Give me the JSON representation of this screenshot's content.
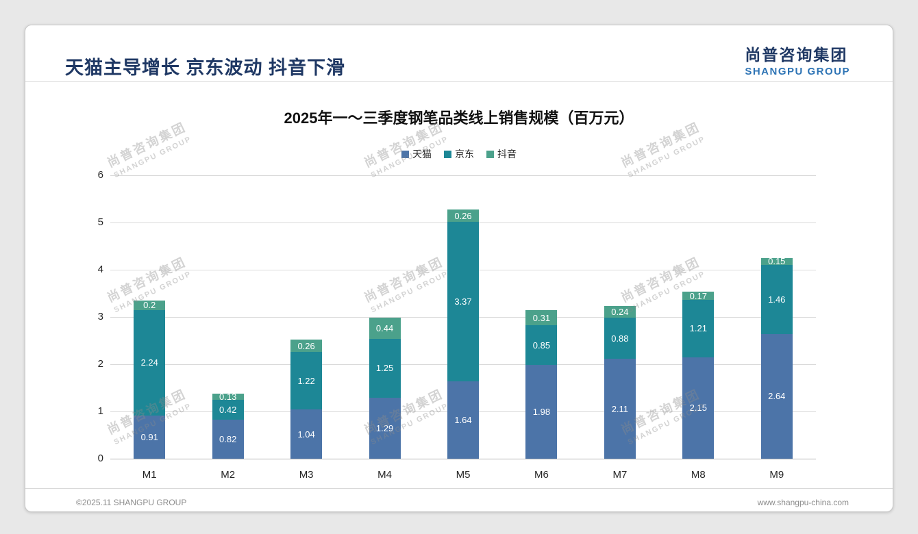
{
  "page": {
    "header_title": "天猫主导增长 京东波动 抖音下滑",
    "logo": {
      "cn": "尚普咨询集团",
      "en": "SHANGPU GROUP"
    },
    "watermark": {
      "cn": "尚普咨询集团",
      "en": "SHANGPU GROUP"
    },
    "footer": {
      "left": "©2025.11 SHANGPU GROUP",
      "right": "www.shangpu-china.com"
    }
  },
  "chart_data": {
    "type": "bar",
    "stacked": true,
    "title": "2025年一～三季度钢笔品类线上销售规模（百万元）",
    "categories": [
      "M1",
      "M2",
      "M3",
      "M4",
      "M5",
      "M6",
      "M7",
      "M8",
      "M9"
    ],
    "series": [
      {
        "name": "天猫",
        "key": "tmall",
        "color": "#4c74a8",
        "values": [
          0.91,
          0.82,
          1.04,
          1.29,
          1.64,
          1.98,
          2.11,
          2.15,
          2.64
        ]
      },
      {
        "name": "京东",
        "key": "jd",
        "color": "#1d8796",
        "values": [
          2.24,
          0.42,
          1.22,
          1.25,
          3.37,
          0.85,
          0.88,
          1.21,
          1.46
        ]
      },
      {
        "name": "抖音",
        "key": "douyin",
        "color": "#4ba18b",
        "values": [
          0.2,
          0.13,
          0.26,
          0.44,
          0.26,
          0.31,
          0.24,
          0.17,
          0.15
        ]
      }
    ],
    "ylim": [
      0,
      6
    ],
    "yticks": [
      0,
      1,
      2,
      3,
      4,
      5,
      6
    ],
    "grid": true,
    "legend_position": "top",
    "value_labels": "inside-white"
  }
}
